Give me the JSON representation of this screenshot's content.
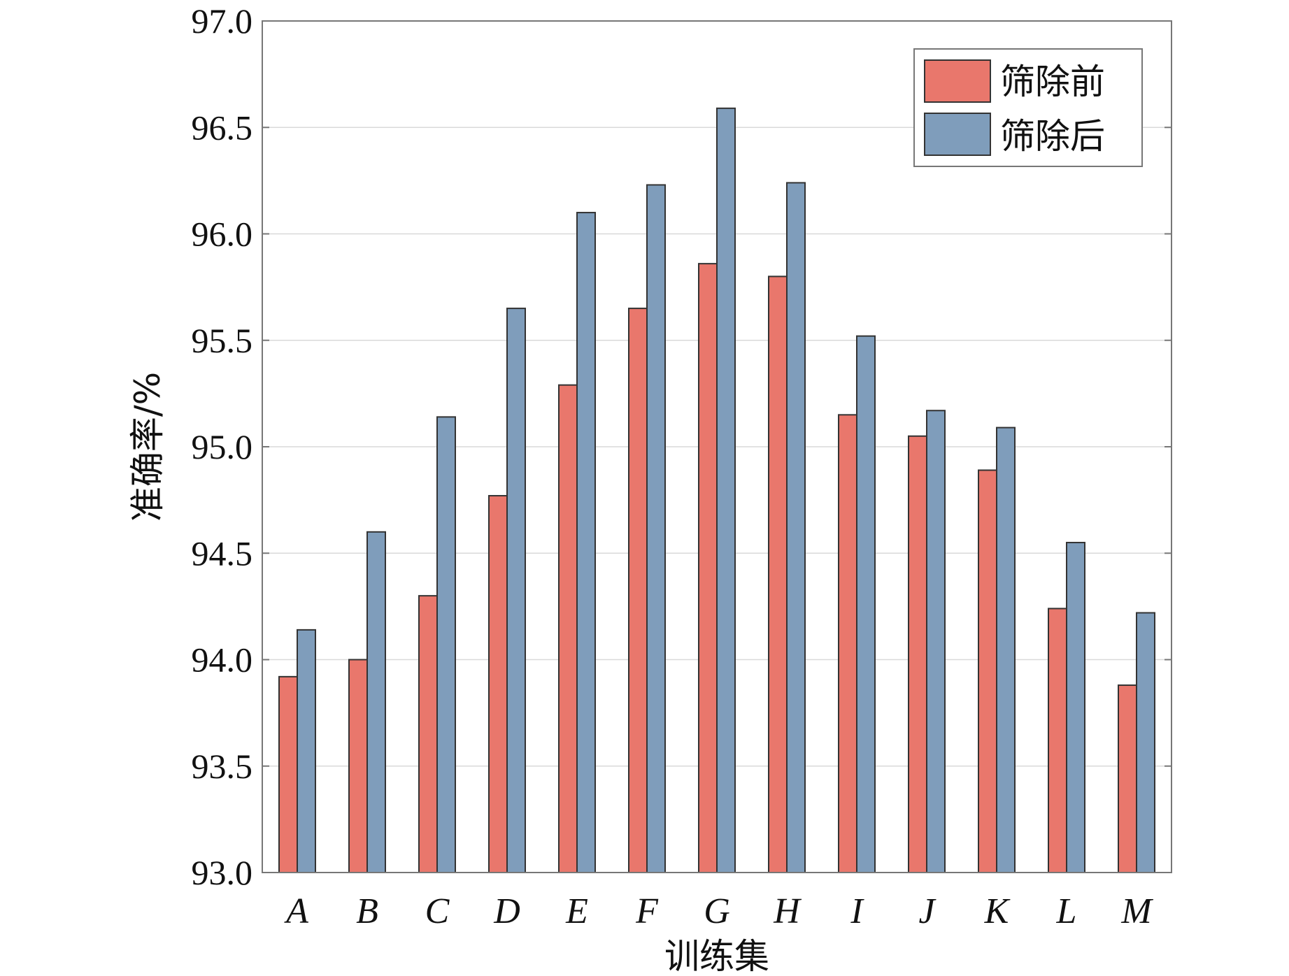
{
  "chart_data": {
    "type": "bar",
    "title": "",
    "xlabel": "训练集",
    "ylabel": "准确率/%",
    "categories": [
      "A",
      "B",
      "C",
      "D",
      "E",
      "F",
      "G",
      "H",
      "I",
      "J",
      "K",
      "L",
      "M"
    ],
    "series": [
      {
        "name": "筛除前",
        "color": "#E9776C",
        "values": [
          93.92,
          94.0,
          94.3,
          94.77,
          95.29,
          95.65,
          95.86,
          95.8,
          95.15,
          95.05,
          94.89,
          94.24,
          93.88
        ]
      },
      {
        "name": "筛除后",
        "color": "#7F9DBB",
        "values": [
          94.14,
          94.6,
          95.14,
          95.65,
          96.1,
          96.23,
          96.59,
          96.24,
          95.52,
          95.17,
          95.09,
          94.55,
          94.22
        ]
      }
    ],
    "ylim": [
      93.0,
      97.0
    ],
    "yticks": [
      "93.0",
      "93.5",
      "94.0",
      "94.5",
      "95.0",
      "95.5",
      "96.0",
      "96.5",
      "97.0"
    ],
    "grid": true,
    "legend_position": "top-right"
  }
}
